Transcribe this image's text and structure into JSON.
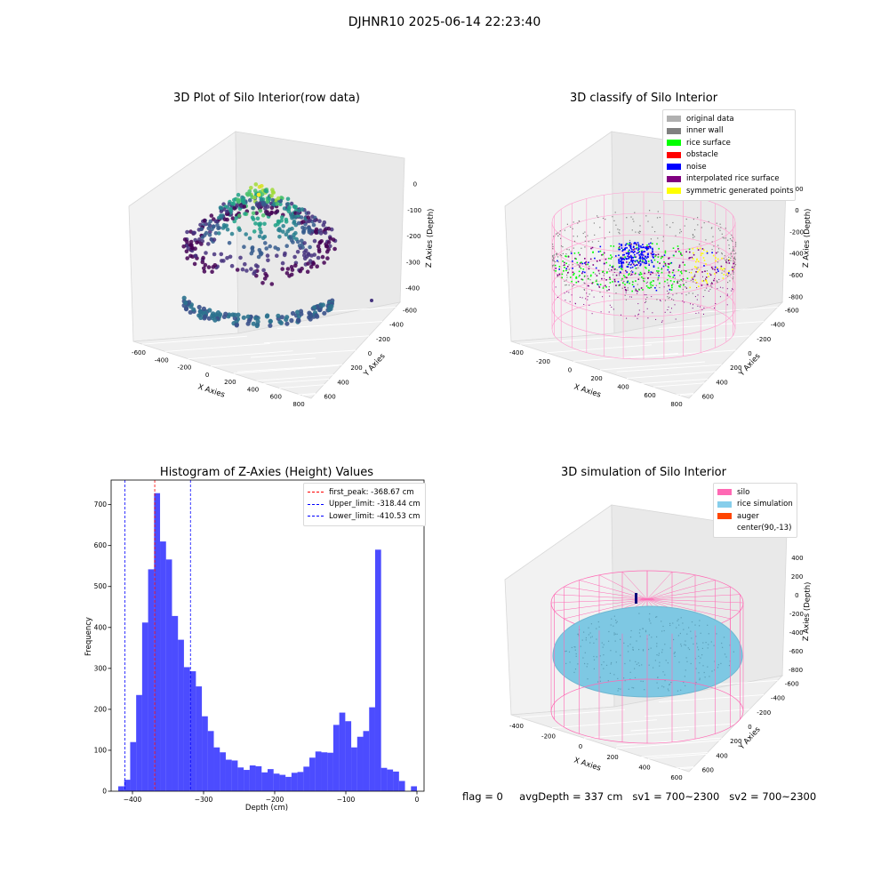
{
  "suptitle": "DJHNR10 2025-06-14 22:23:40",
  "footer": {
    "flag": "flag = 0",
    "avg_depth": "avgDepth = 337 cm",
    "sv1": "sv1 = 700~2300",
    "sv2": "sv2 = 700~2300"
  },
  "panels": {
    "raw": {
      "title": "3D Plot of Silo Interior(row data)",
      "xlabel": "X Axies",
      "ylabel": "Y Axies",
      "zlabel": "Z Axies (Depth)",
      "xticks": [
        "-600",
        "-400",
        "-200",
        "0",
        "200",
        "400",
        "600",
        "800"
      ],
      "yticks": [
        "-600",
        "-400",
        "-200",
        "0",
        "200",
        "400",
        "600"
      ],
      "zticks": [
        "-400",
        "-300",
        "-200",
        "-100",
        "0"
      ]
    },
    "classify": {
      "title": "3D classify of Silo Interior",
      "xlabel": "X Axies",
      "ylabel": "Y Axies",
      "zlabel": "Z Axies (Depth)",
      "xticks": [
        "-400",
        "-200",
        "0",
        "200",
        "400",
        "600",
        "800"
      ],
      "yticks": [
        "-600",
        "-400",
        "-200",
        "0",
        "200",
        "400",
        "600"
      ],
      "zticks": [
        "-800",
        "-600",
        "-400",
        "-200",
        "0",
        "200"
      ],
      "legend": [
        {
          "label": "original data",
          "color": "#b0b0b0"
        },
        {
          "label": "inner wall",
          "color": "#808080"
        },
        {
          "label": "rice surface",
          "color": "#00ff00"
        },
        {
          "label": "obstacle",
          "color": "#ff0000"
        },
        {
          "label": "noise",
          "color": "#0000ff"
        },
        {
          "label": "interpolated rice surface",
          "color": "#800080"
        },
        {
          "label": "symmetric generated points",
          "color": "#ffff00"
        }
      ]
    },
    "simulation": {
      "title": "3D simulation of Silo Interior",
      "xlabel": "X Axies",
      "ylabel": "Y Axies",
      "zlabel": "Z Axies (Depth)",
      "xticks": [
        "-400",
        "-200",
        "0",
        "200",
        "400",
        "600"
      ],
      "yticks": [
        "-600",
        "-400",
        "-200",
        "0",
        "200",
        "400",
        "600"
      ],
      "zticks": [
        "-800",
        "-600",
        "-400",
        "-200",
        "0",
        "200",
        "400"
      ],
      "legend": [
        {
          "label": "silo",
          "color": "#ff69b4"
        },
        {
          "label": "rice simulation",
          "color": "#87ceeb"
        },
        {
          "label": "auger",
          "color": "#ff4500"
        },
        {
          "label": "center(90,-13)",
          "color": "#ffffff"
        }
      ]
    }
  },
  "chart_data": {
    "type": "bar",
    "title": "Histogram of Z-Axies (Height) Values",
    "xlabel": "Depth (cm)",
    "ylabel": "Frequency",
    "xlim": [
      -430,
      10
    ],
    "ylim": [
      0,
      760
    ],
    "xticks": [
      -400,
      -300,
      -200,
      -100,
      0
    ],
    "yticks": [
      0,
      100,
      200,
      300,
      400,
      500,
      600,
      700
    ],
    "bin_start": -420,
    "bin_width": 8.4,
    "values": [
      12,
      28,
      120,
      235,
      412,
      542,
      728,
      610,
      566,
      428,
      370,
      303,
      293,
      256,
      183,
      147,
      107,
      95,
      77,
      75,
      58,
      52,
      63,
      61,
      46,
      54,
      43,
      40,
      35,
      45,
      47,
      60,
      82,
      97,
      95,
      94,
      162,
      192,
      171,
      107,
      133,
      147,
      205,
      590,
      57,
      53,
      48,
      25,
      0,
      12
    ],
    "bar_color": "#0000ff",
    "lines": [
      {
        "label": "first_peak: -368.67 cm",
        "x": -368.67,
        "color": "#ff0000"
      },
      {
        "label": "Upper_limit: -318.44 cm",
        "x": -318.44,
        "color": "#0000ff"
      },
      {
        "label": "Lower_limit: -410.53 cm",
        "x": -410.53,
        "color": "#0000ff"
      }
    ],
    "legend_position": "upper right"
  }
}
